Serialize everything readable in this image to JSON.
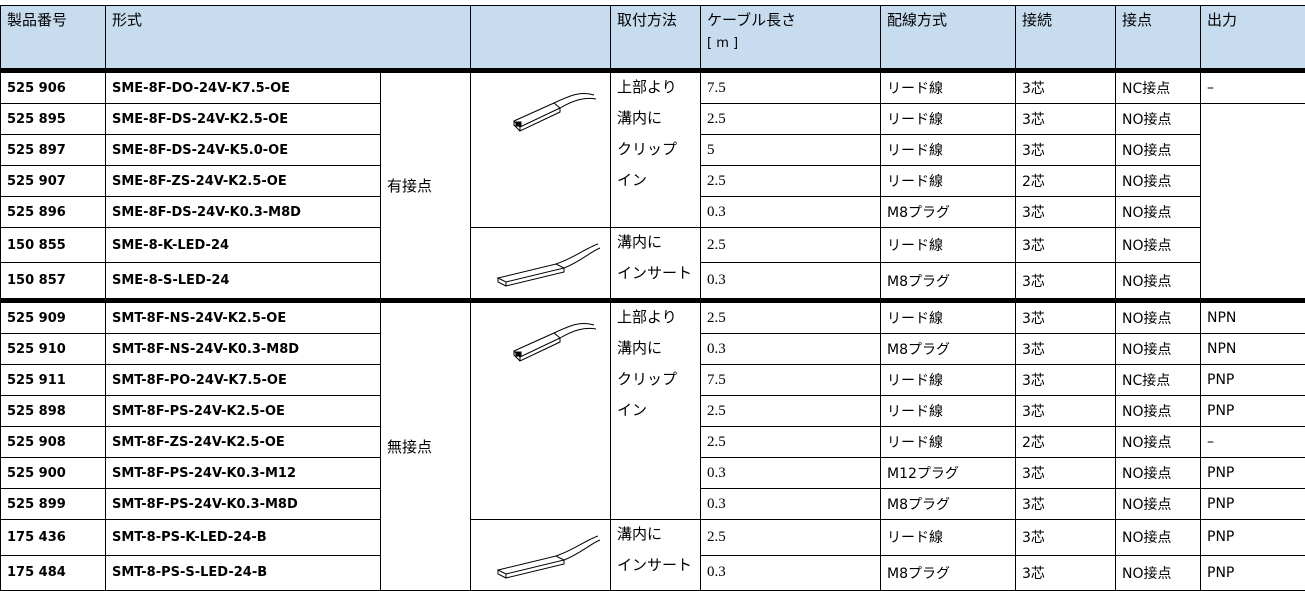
{
  "header": {
    "cells": [
      "製品番号",
      "形式",
      "取付方法",
      "ケーブル長さ",
      "配線方式",
      "接続",
      "接点",
      "出力"
    ],
    "unit": "[ m ]"
  },
  "groups": [
    {
      "label": "有接点",
      "mounts": [
        {
          "lines": [
            "上部より",
            "溝内に",
            "クリップ",
            "イン"
          ],
          "rows": [
            [
              "525 906",
              "SME-8F-DO-24V-K7.5-OE",
              "7.5",
              "リード線",
              "3芯",
              "NC接点",
              "–"
            ],
            [
              "525 895",
              "SME-8F-DS-24V-K2.5-OE",
              "2.5",
              "リード線",
              "3芯",
              "NO接点",
              null
            ],
            [
              "525 897",
              "SME-8F-DS-24V-K5.0-OE",
              "5",
              "リード線",
              "3芯",
              "NO接点",
              null
            ],
            [
              "525 907",
              "SME-8F-ZS-24V-K2.5-OE",
              "2.5",
              "リード線",
              "2芯",
              "NO接点",
              null
            ],
            [
              "525 896",
              "SME-8F-DS-24V-K0.3-M8D",
              "0.3",
              "M8プラグ",
              "3芯",
              "NO接点",
              null
            ]
          ]
        },
        {
          "lines": [
            "溝内に",
            "インサート"
          ],
          "rows": [
            [
              "150 855",
              "SME-8-K-LED-24",
              "2.5",
              "リード線",
              "3芯",
              "NO接点",
              null
            ],
            [
              "150 857",
              "SME-8-S-LED-24",
              "0.3",
              "M8プラグ",
              "3芯",
              "NO接点",
              null
            ]
          ]
        }
      ]
    },
    {
      "label": "無接点",
      "mounts": [
        {
          "lines": [
            "上部より",
            "溝内に",
            "クリップ",
            "イン"
          ],
          "rows": [
            [
              "525 909",
              "SMT-8F-NS-24V-K2.5-OE",
              "2.5",
              "リード線",
              "3芯",
              "NO接点",
              "NPN"
            ],
            [
              "525 910",
              "SMT-8F-NS-24V-K0.3-M8D",
              "0.3",
              "M8プラグ",
              "3芯",
              "NO接点",
              "NPN"
            ],
            [
              "525 911",
              "SMT-8F-PO-24V-K7.5-OE",
              "7.5",
              "リード線",
              "3芯",
              "NC接点",
              "PNP"
            ],
            [
              "525 898",
              "SMT-8F-PS-24V-K2.5-OE",
              "2.5",
              "リード線",
              "3芯",
              "NO接点",
              "PNP"
            ],
            [
              "525 908",
              "SMT-8F-ZS-24V-K2.5-OE",
              "2.5",
              "リード線",
              "2芯",
              "NO接点",
              "–"
            ],
            [
              "525 900",
              "SMT-8F-PS-24V-K0.3-M12",
              "0.3",
              "M12プラグ",
              "3芯",
              "NO接点",
              "PNP"
            ],
            [
              "525 899",
              "SMT-8F-PS-24V-K0.3-M8D",
              "0.3",
              "M8プラグ",
              "3芯",
              "NO接点",
              "PNP"
            ]
          ]
        },
        {
          "lines": [
            "溝内に",
            "インサート"
          ],
          "rows": [
            [
              "175 436",
              "SMT-8-PS-K-LED-24-B",
              "2.5",
              "リード線",
              "3芯",
              "NO接点",
              "PNP"
            ],
            [
              "175 484",
              "SMT-8-PS-S-LED-24-B",
              "0.3",
              "M8プラグ",
              "3芯",
              "NO接点",
              "PNP"
            ]
          ]
        }
      ]
    }
  ]
}
